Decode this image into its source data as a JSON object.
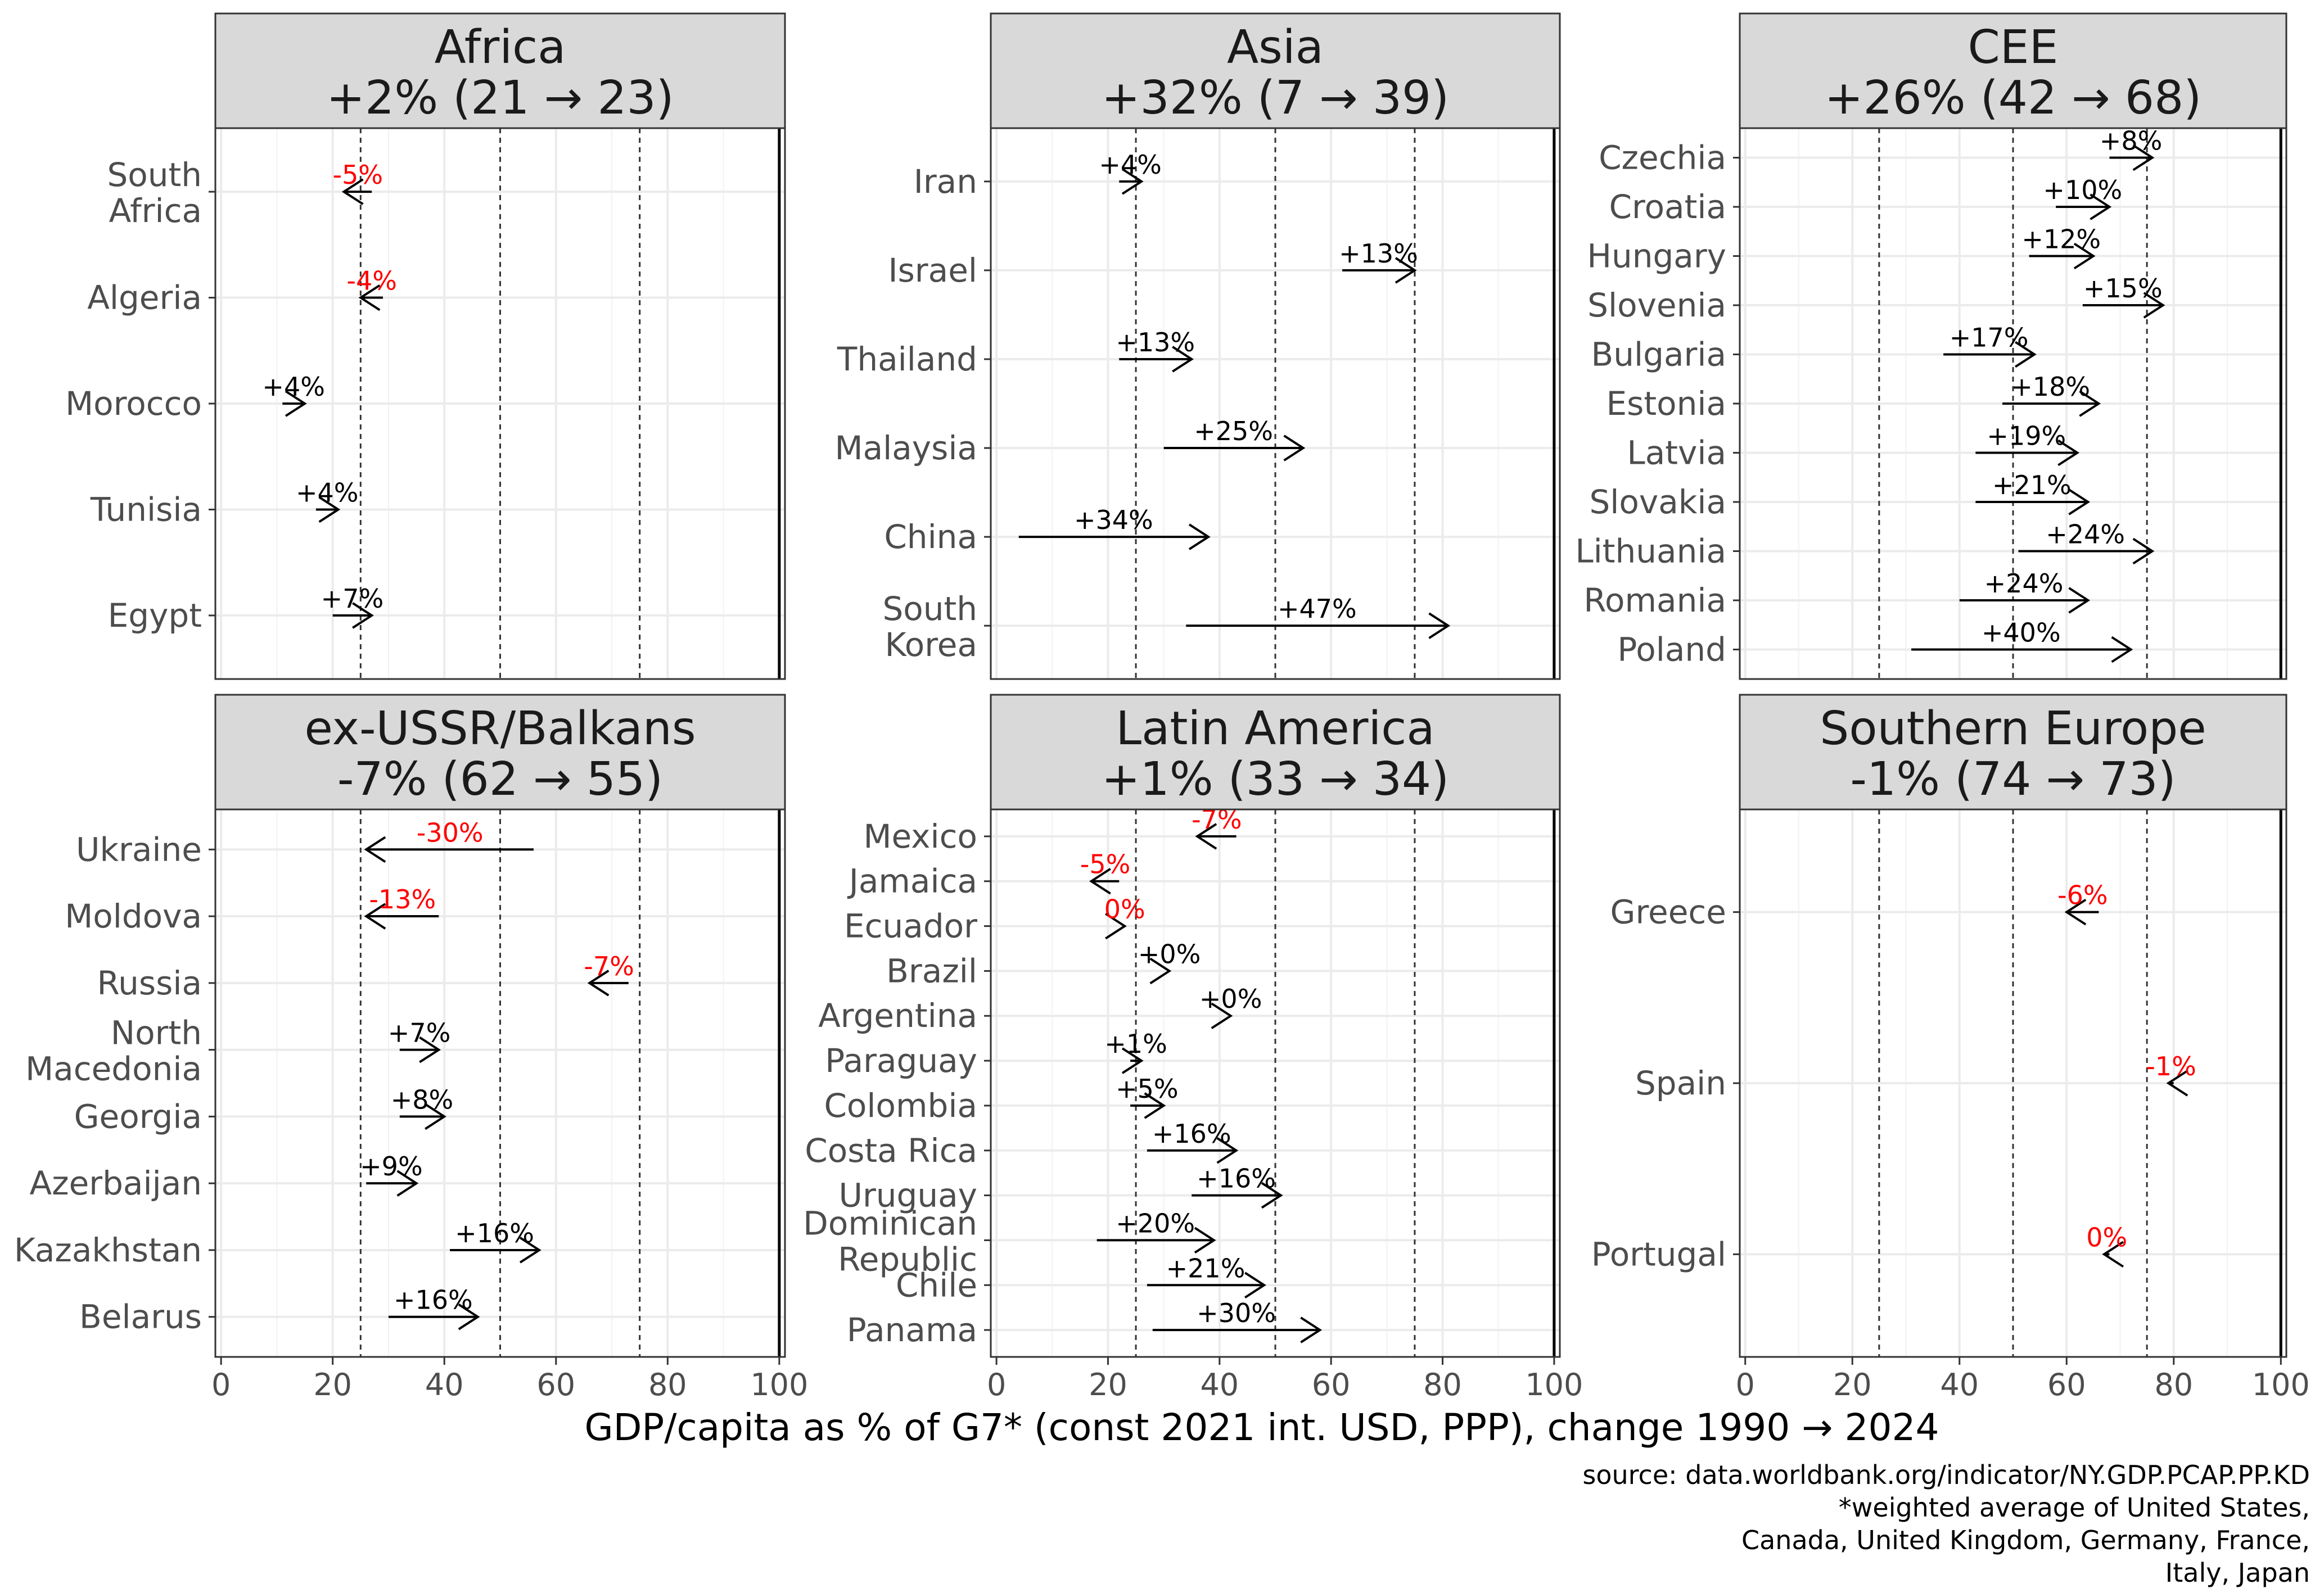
{
  "chart_data": {
    "type": "arrow-dumbbell",
    "xlabel": "GDP/capita as % of G7* (const 2021 int. USD, PPP), change 1990 → 2024",
    "caption": [
      "source: data.worldbank.org/indicator/NY.GDP.PCAP.PP.KD",
      "*weighted average of United States,",
      "Canada, United Kingdom, Germany, France,",
      "Italy, Japan"
    ],
    "xlim": [
      0,
      100
    ],
    "x_ticks": [
      "0",
      "20",
      "40",
      "60",
      "80",
      "100"
    ],
    "x_tick_values": [
      0,
      20,
      40,
      60,
      80,
      100
    ],
    "reference_lines": {
      "dashed": [
        25,
        50,
        75
      ],
      "solid": [
        100
      ]
    },
    "colors": {
      "increase": "#000000",
      "decrease": "#ff0000",
      "strip": "#d9d9d9",
      "grid": "#ebebeb"
    },
    "panels": [
      {
        "title": "Africa",
        "subtitle": "+2% (21 → 23)",
        "rows": [
          {
            "name": "Egypt",
            "start": 20,
            "end": 27,
            "label": "+7%"
          },
          {
            "name": "Tunisia",
            "start": 17,
            "end": 21,
            "label": "+4%"
          },
          {
            "name": "Morocco",
            "start": 11,
            "end": 15,
            "label": "+4%"
          },
          {
            "name": "Algeria",
            "start": 29,
            "end": 25,
            "label": "-4%"
          },
          {
            "name": "South Africa",
            "start": 27,
            "end": 22,
            "label": "-5%"
          }
        ]
      },
      {
        "title": "Asia",
        "subtitle": "+32% (7 → 39)",
        "rows": [
          {
            "name": "South Korea",
            "start": 34,
            "end": 81,
            "label": "+47%"
          },
          {
            "name": "China",
            "start": 4,
            "end": 38,
            "label": "+34%"
          },
          {
            "name": "Malaysia",
            "start": 30,
            "end": 55,
            "label": "+25%"
          },
          {
            "name": "Thailand",
            "start": 22,
            "end": 35,
            "label": "+13%"
          },
          {
            "name": "Israel",
            "start": 62,
            "end": 75,
            "label": "+13%"
          },
          {
            "name": "Iran",
            "start": 22,
            "end": 26,
            "label": "+4%"
          }
        ]
      },
      {
        "title": "CEE",
        "subtitle": "+26% (42 → 68)",
        "rows": [
          {
            "name": "Poland",
            "start": 31,
            "end": 72,
            "label": "+40%"
          },
          {
            "name": "Romania",
            "start": 40,
            "end": 64,
            "label": "+24%"
          },
          {
            "name": "Lithuania",
            "start": 51,
            "end": 76,
            "label": "+24%"
          },
          {
            "name": "Slovakia",
            "start": 43,
            "end": 64,
            "label": "+21%"
          },
          {
            "name": "Latvia",
            "start": 43,
            "end": 62,
            "label": "+19%"
          },
          {
            "name": "Estonia",
            "start": 48,
            "end": 66,
            "label": "+18%"
          },
          {
            "name": "Bulgaria",
            "start": 37,
            "end": 54,
            "label": "+17%"
          },
          {
            "name": "Slovenia",
            "start": 63,
            "end": 78,
            "label": "+15%"
          },
          {
            "name": "Hungary",
            "start": 53,
            "end": 65,
            "label": "+12%"
          },
          {
            "name": "Croatia",
            "start": 58,
            "end": 68,
            "label": "+10%"
          },
          {
            "name": "Czechia",
            "start": 68,
            "end": 76,
            "label": "+8%"
          }
        ]
      },
      {
        "title": "ex-USSR/Balkans",
        "subtitle": "-7% (62 → 55)",
        "rows": [
          {
            "name": "Belarus",
            "start": 30,
            "end": 46,
            "label": "+16%"
          },
          {
            "name": "Kazakhstan",
            "start": 41,
            "end": 57,
            "label": "+16%"
          },
          {
            "name": "Azerbaijan",
            "start": 26,
            "end": 35,
            "label": "+9%"
          },
          {
            "name": "Georgia",
            "start": 32,
            "end": 40,
            "label": "+8%"
          },
          {
            "name": "North Macedonia",
            "start": 32,
            "end": 39,
            "label": "+7%"
          },
          {
            "name": "Russia",
            "start": 73,
            "end": 66,
            "label": "-7%"
          },
          {
            "name": "Moldova",
            "start": 39,
            "end": 26,
            "label": "-13%"
          },
          {
            "name": "Ukraine",
            "start": 56,
            "end": 26,
            "label": "-30%"
          }
        ]
      },
      {
        "title": "Latin America",
        "subtitle": "+1% (33 → 34)",
        "rows": [
          {
            "name": "Panama",
            "start": 28,
            "end": 58,
            "label": "+30%"
          },
          {
            "name": "Chile",
            "start": 27,
            "end": 48,
            "label": "+21%"
          },
          {
            "name": "Dominican Republic",
            "start": 18,
            "end": 39,
            "label": "+20%"
          },
          {
            "name": "Uruguay",
            "start": 35,
            "end": 51,
            "label": "+16%"
          },
          {
            "name": "Costa Rica",
            "start": 27,
            "end": 43,
            "label": "+16%"
          },
          {
            "name": "Colombia",
            "start": 24,
            "end": 30,
            "label": "+5%"
          },
          {
            "name": "Paraguay",
            "start": 24,
            "end": 26,
            "label": "+1%"
          },
          {
            "name": "Argentina",
            "start": 42,
            "end": 42,
            "label": "+0%"
          },
          {
            "name": "Brazil",
            "start": 31,
            "end": 31,
            "label": "+0%"
          },
          {
            "name": "Ecuador",
            "start": 23,
            "end": 23,
            "label": "0%"
          },
          {
            "name": "Jamaica",
            "start": 22,
            "end": 17,
            "label": "-5%"
          },
          {
            "name": "Mexico",
            "start": 43,
            "end": 36,
            "label": "-7%"
          }
        ]
      },
      {
        "title": "Southern Europe",
        "subtitle": "-1% (74 → 73)",
        "rows": [
          {
            "name": "Portugal",
            "start": 68,
            "end": 67,
            "label": "0%"
          },
          {
            "name": "Spain",
            "start": 80,
            "end": 79,
            "label": "-1%"
          },
          {
            "name": "Greece",
            "start": 66,
            "end": 60,
            "label": "-6%"
          }
        ]
      }
    ]
  }
}
